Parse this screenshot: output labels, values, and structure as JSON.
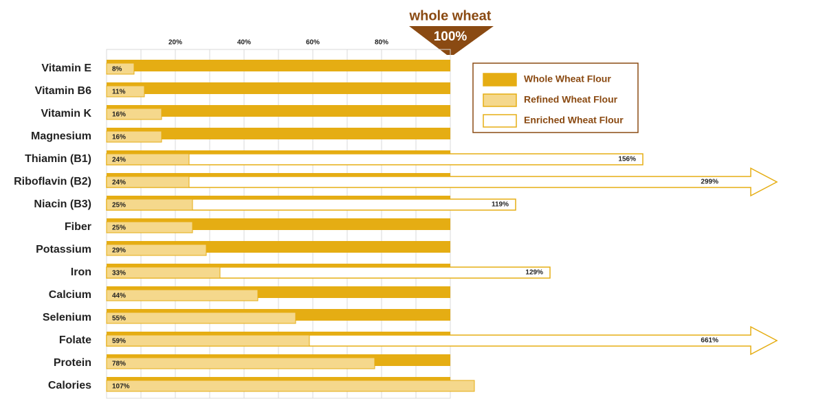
{
  "chart_data": {
    "type": "bar",
    "orientation": "horizontal",
    "annotation": {
      "title": "whole wheat",
      "label": "100%"
    },
    "categories": [
      "Vitamin E",
      "Vitamin B6",
      "Vitamin K",
      "Magnesium",
      "Thiamin (B1)",
      "Riboflavin (B2)",
      "Niacin (B3)",
      "Fiber",
      "Potassium",
      "Iron",
      "Calcium",
      "Selenium",
      "Folate",
      "Protein",
      "Calories"
    ],
    "series": [
      {
        "name": "Whole Wheat Flour",
        "color": "#e5ad13",
        "values": [
          100,
          100,
          100,
          100,
          100,
          100,
          100,
          100,
          100,
          100,
          100,
          100,
          100,
          100,
          100
        ]
      },
      {
        "name": "Refined Wheat Flour",
        "color": "#f5d88c",
        "values": [
          8,
          11,
          16,
          16,
          24,
          24,
          25,
          25,
          29,
          33,
          44,
          55,
          59,
          78,
          107
        ],
        "value_labels": [
          "8%",
          "11%",
          "16%",
          "16%",
          "24%",
          "24%",
          "25%",
          "25%",
          "29%",
          "33%",
          "44%",
          "55%",
          "59%",
          "78%",
          "107%"
        ]
      },
      {
        "name": "Enriched Wheat Flour",
        "color": "#ffffff",
        "values": [
          null,
          null,
          null,
          null,
          156,
          299,
          119,
          null,
          null,
          129,
          null,
          null,
          661,
          null,
          null
        ],
        "value_labels": [
          null,
          null,
          null,
          null,
          "156%",
          "299%",
          "119%",
          null,
          null,
          "129%",
          null,
          null,
          "661%",
          null,
          null
        ]
      }
    ],
    "xlim": [
      0,
      100
    ],
    "xticks": [
      {
        "value": 20,
        "label": "20%"
      },
      {
        "value": 40,
        "label": "40%"
      },
      {
        "value": 60,
        "label": "60%"
      },
      {
        "value": 80,
        "label": "80%"
      }
    ],
    "minor_xticks": [
      10,
      30,
      50,
      70,
      90,
      100
    ],
    "grid": true,
    "legend": "upper right"
  }
}
